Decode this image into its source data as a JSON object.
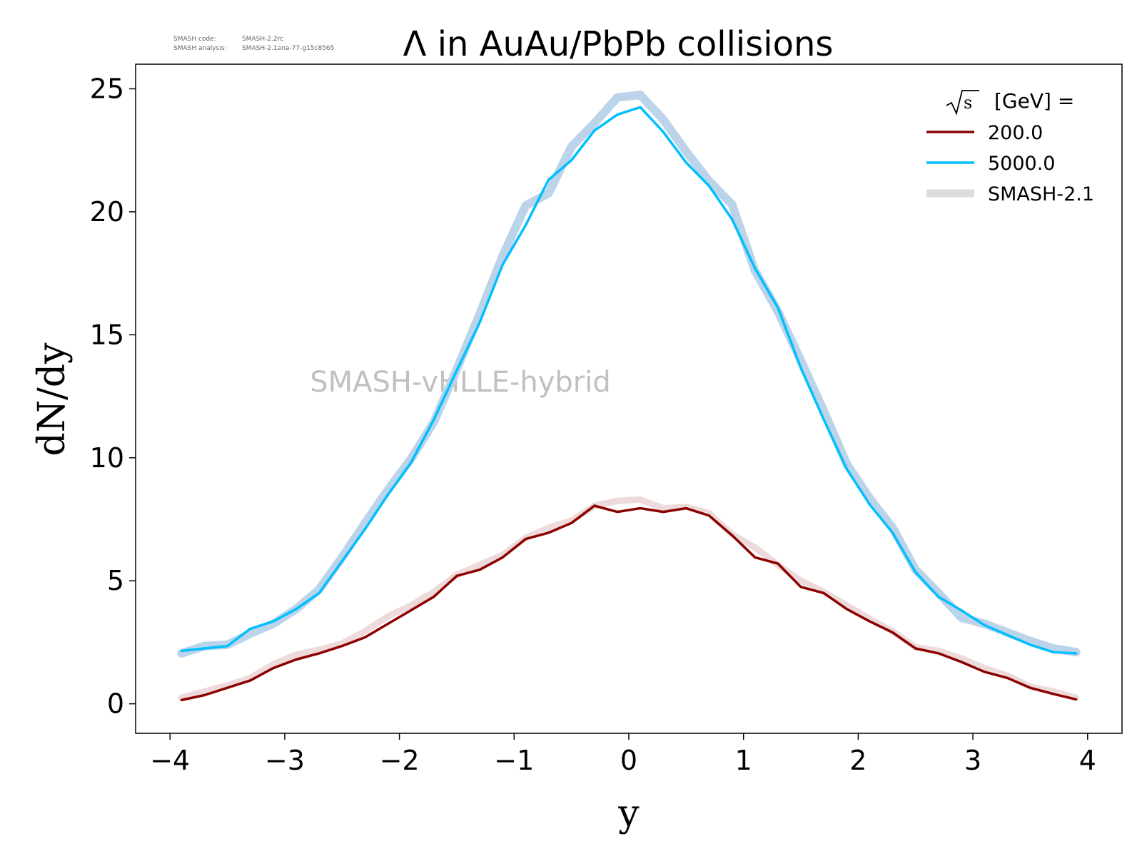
{
  "meta": {
    "code_label": "SMASH code:",
    "code_value": "SMASH-2.2rc",
    "analysis_label": "SMASH analysis:",
    "analysis_value": "SMASH-2.1ana-77-g15c8565"
  },
  "chart_data": {
    "type": "line",
    "title": "Λ in AuAu/PbPb collisions",
    "xlabel": "y",
    "ylabel": "dN/dy",
    "xlim": [
      -4.3,
      4.3
    ],
    "ylim": [
      -1.2,
      26.0
    ],
    "xticks": [
      -4,
      -3,
      -2,
      -1,
      0,
      1,
      2,
      3,
      4
    ],
    "xtick_labels": [
      "−4",
      "−3",
      "−2",
      "−1",
      "0",
      "1",
      "2",
      "3",
      "4"
    ],
    "yticks": [
      0,
      5,
      10,
      15,
      20,
      25
    ],
    "ytick_labels": [
      "0",
      "5",
      "10",
      "15",
      "20",
      "25"
    ],
    "grid": false,
    "watermark": "SMASH-vHLLE-hybrid",
    "legend": {
      "placement": "top-right",
      "title_prefix": "s",
      "title_suffix": "[GeV] =",
      "entries": [
        "200.0",
        "5000.0",
        "SMASH-2.1"
      ]
    },
    "x": [
      -3.9,
      -3.7,
      -3.5,
      -3.3,
      -3.1,
      -2.9,
      -2.7,
      -2.5,
      -2.3,
      -2.1,
      -1.9,
      -1.7,
      -1.5,
      -1.3,
      -1.1,
      -0.9,
      -0.7,
      -0.5,
      -0.3,
      -0.1,
      0.1,
      0.3,
      0.5,
      0.7,
      0.9,
      1.1,
      1.3,
      1.5,
      1.7,
      1.9,
      2.1,
      2.3,
      2.5,
      2.7,
      2.9,
      3.1,
      3.3,
      3.5,
      3.7,
      3.9
    ],
    "series": [
      {
        "name": "200.0",
        "color": "#8b0000",
        "values": [
          0.15,
          0.35,
          0.65,
          0.95,
          1.45,
          1.8,
          2.05,
          2.35,
          2.7,
          3.25,
          3.8,
          4.35,
          5.2,
          5.45,
          5.95,
          6.7,
          6.95,
          7.35,
          8.05,
          7.8,
          7.95,
          7.8,
          7.95,
          7.65,
          6.85,
          5.95,
          5.7,
          4.75,
          4.5,
          3.85,
          3.35,
          2.9,
          2.25,
          2.05,
          1.7,
          1.3,
          1.05,
          0.65,
          0.4,
          0.18
        ]
      },
      {
        "name": "5000.0",
        "color": "#00bfff",
        "values": [
          2.15,
          2.25,
          2.35,
          3.05,
          3.35,
          3.85,
          4.5,
          5.8,
          7.1,
          8.5,
          9.8,
          11.55,
          13.55,
          15.5,
          17.85,
          19.45,
          21.3,
          22.1,
          23.3,
          23.95,
          24.25,
          23.25,
          22.0,
          21.05,
          19.7,
          17.7,
          16.1,
          13.65,
          11.55,
          9.55,
          8.1,
          6.95,
          5.35,
          4.35,
          3.8,
          3.2,
          2.8,
          2.4,
          2.1,
          2.05
        ]
      },
      {
        "name": "SMASH-2.1",
        "color": "#d6d6d6",
        "band_colors": [
          "#eedada",
          "#bcd4ea"
        ],
        "bands": [
          [
            0.25,
            0.5,
            0.75,
            1.05,
            1.6,
            2.0,
            2.2,
            2.45,
            2.95,
            3.55,
            4.0,
            4.55,
            5.25,
            5.65,
            6.05,
            6.75,
            7.15,
            7.45,
            8.05,
            8.25,
            8.3,
            7.95,
            8.0,
            7.75,
            6.9,
            6.35,
            5.65,
            5.0,
            4.55,
            4.0,
            3.45,
            2.95,
            2.3,
            2.15,
            1.85,
            1.45,
            1.15,
            0.7,
            0.5,
            0.25
          ],
          [
            2.05,
            2.35,
            2.4,
            2.85,
            3.25,
            3.85,
            4.65,
            5.95,
            7.35,
            8.7,
            9.95,
            11.45,
            13.6,
            15.85,
            18.2,
            20.25,
            20.75,
            22.65,
            23.6,
            24.65,
            24.75,
            23.75,
            22.45,
            21.25,
            20.3,
            17.6,
            15.95,
            13.95,
            11.9,
            9.75,
            8.35,
            7.15,
            5.45,
            4.5,
            3.5,
            3.25,
            2.9,
            2.55,
            2.25,
            2.1
          ]
        ]
      }
    ]
  }
}
